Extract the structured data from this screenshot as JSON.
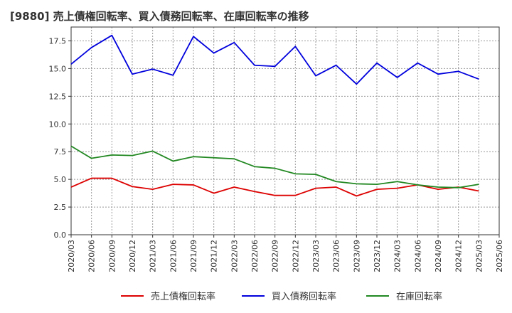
{
  "chart_data": {
    "type": "line",
    "title": "[9880]  売上債権回転率、買入債務回転率、在庫回転率の推移",
    "xlabel": "",
    "ylabel": "",
    "ylim": [
      0,
      18.75
    ],
    "yticks": [
      "0.0",
      "2.5",
      "5.0",
      "7.5",
      "10.0",
      "12.5",
      "15.0",
      "17.5"
    ],
    "ytick_values": [
      0,
      2.5,
      5.0,
      7.5,
      10.0,
      12.5,
      15.0,
      17.5
    ],
    "grid": true,
    "legend_position": "bottom",
    "x": [
      "2020/03",
      "2020/06",
      "2020/09",
      "2020/12",
      "2021/03",
      "2021/06",
      "2021/09",
      "2021/12",
      "2022/03",
      "2022/06",
      "2022/09",
      "2022/12",
      "2023/03",
      "2023/06",
      "2023/09",
      "2023/12",
      "2024/03",
      "2024/06",
      "2024/09",
      "2024/12",
      "2025/03",
      "2025/06"
    ],
    "series": [
      {
        "name": "売上債権回転率",
        "color": "#dd0000",
        "values": [
          4.3,
          5.1,
          5.1,
          4.35,
          4.1,
          4.55,
          4.5,
          3.75,
          4.3,
          3.9,
          3.55,
          3.55,
          4.2,
          4.3,
          3.5,
          4.1,
          4.2,
          4.5,
          4.1,
          4.3,
          3.95,
          null
        ]
      },
      {
        "name": "買入債務回転率",
        "color": "#0000dd",
        "values": [
          15.4,
          16.9,
          18.0,
          14.5,
          14.95,
          14.4,
          17.9,
          16.4,
          17.35,
          15.3,
          15.2,
          17.0,
          14.35,
          15.3,
          13.6,
          15.5,
          14.2,
          15.5,
          14.5,
          14.75,
          14.05,
          null
        ]
      },
      {
        "name": "在庫回転率",
        "color": "#228822",
        "values": [
          8.0,
          6.9,
          7.2,
          7.15,
          7.55,
          6.65,
          7.05,
          6.95,
          6.85,
          6.15,
          6.0,
          5.5,
          5.45,
          4.8,
          4.6,
          4.55,
          4.8,
          4.5,
          4.3,
          4.25,
          4.55,
          null
        ]
      }
    ]
  }
}
